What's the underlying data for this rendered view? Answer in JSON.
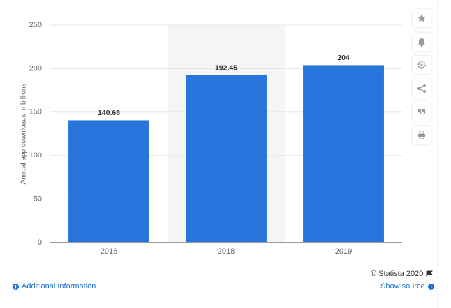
{
  "chart_data": {
    "type": "bar",
    "y_axis_label": "Annual app downloads in billions",
    "categories": [
      "2016",
      "2018",
      "2019"
    ],
    "values": [
      140.68,
      192.45,
      204
    ],
    "color": "#2876dd",
    "ylim": [
      0,
      250
    ],
    "yticks": [
      0,
      50,
      100,
      150,
      200,
      250
    ],
    "grid": true
  },
  "footer": {
    "copyright": "© Statista 2020",
    "additional_info": "Additional Information",
    "show_source": "Show source"
  }
}
